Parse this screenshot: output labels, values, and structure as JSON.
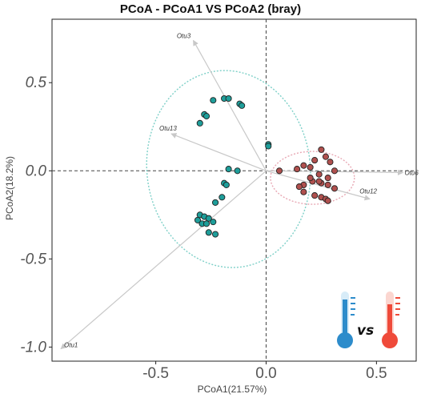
{
  "chart_data": {
    "type": "scatter",
    "title": "PCoA - PCoA1 VS PCoA2 (bray)",
    "xlabel": "PCoA1(21.57%)",
    "ylabel": "PCoA2(18.2%)",
    "xlim": [
      -0.97,
      0.68
    ],
    "ylim": [
      -1.08,
      0.86
    ],
    "xticks": [
      -0.5,
      0.0,
      0.5
    ],
    "xtick_labels": [
      "-0.5",
      "0.0",
      "0.5"
    ],
    "yticks": [
      -1.0,
      -0.5,
      0.0,
      0.5
    ],
    "ytick_labels": [
      "-1.0",
      "-0.5",
      "0.0",
      "0.5"
    ],
    "grid": false,
    "reference_lines": {
      "x": 0,
      "y": 0,
      "style": "dashed"
    },
    "series": [
      {
        "color": "#1e9e9a",
        "x": [
          -0.24,
          -0.19,
          -0.17,
          -0.12,
          -0.11,
          -0.28,
          -0.27,
          -0.3,
          0.01,
          0.01,
          -0.17,
          -0.13,
          -0.19,
          -0.18,
          -0.2,
          -0.23,
          -0.3,
          -0.28,
          -0.31,
          -0.26,
          -0.29,
          -0.27,
          -0.24,
          -0.26,
          -0.23
        ],
        "y": [
          0.4,
          0.41,
          0.41,
          0.38,
          0.37,
          0.32,
          0.31,
          0.27,
          0.15,
          0.14,
          0.01,
          0.0,
          -0.07,
          -0.08,
          -0.15,
          -0.18,
          -0.25,
          -0.26,
          -0.28,
          -0.27,
          -0.3,
          -0.3,
          -0.29,
          -0.35,
          -0.36
        ]
      },
      {
        "color": "#b0504e",
        "x": [
          0.06,
          0.14,
          0.17,
          0.2,
          0.22,
          0.25,
          0.27,
          0.29,
          0.31,
          0.24,
          0.28,
          0.25,
          0.21,
          0.17,
          0.15,
          0.2,
          0.24,
          0.28,
          0.31,
          0.17,
          0.22,
          0.25,
          0.27,
          0.28
        ],
        "y": [
          0.0,
          0.01,
          0.03,
          0.02,
          0.06,
          0.12,
          0.08,
          0.05,
          0.0,
          -0.02,
          -0.04,
          -0.07,
          -0.06,
          -0.08,
          -0.09,
          -0.04,
          -0.06,
          -0.08,
          -0.1,
          -0.12,
          -0.14,
          -0.15,
          -0.16,
          -0.17
        ]
      }
    ],
    "ellipses": [
      {
        "color": "#7ed0c8",
        "center": [
          -0.17,
          0.01
        ],
        "rx": 0.37,
        "ry": 0.56,
        "angle": -7
      },
      {
        "color": "#e8a8b4",
        "center": [
          0.21,
          -0.04
        ],
        "rx": 0.19,
        "ry": 0.15,
        "angle": 0
      }
    ],
    "arrows": [
      {
        "label": "Otu3",
        "x": -0.33,
        "y": 0.74
      },
      {
        "label": "Otu13",
        "x": -0.43,
        "y": 0.21
      },
      {
        "label": "Otu1",
        "x": -0.93,
        "y": -1.01
      },
      {
        "label": "Otu6",
        "x": 0.62,
        "y": -0.01
      },
      {
        "label": "Otu12",
        "x": 0.47,
        "y": -0.16
      }
    ]
  },
  "legend_text": "vs",
  "icons": [
    "cold-thermometer-icon",
    "hot-thermometer-icon"
  ],
  "colors": {
    "cold": "#2d8ccb",
    "hot": "#ef4a3a"
  }
}
